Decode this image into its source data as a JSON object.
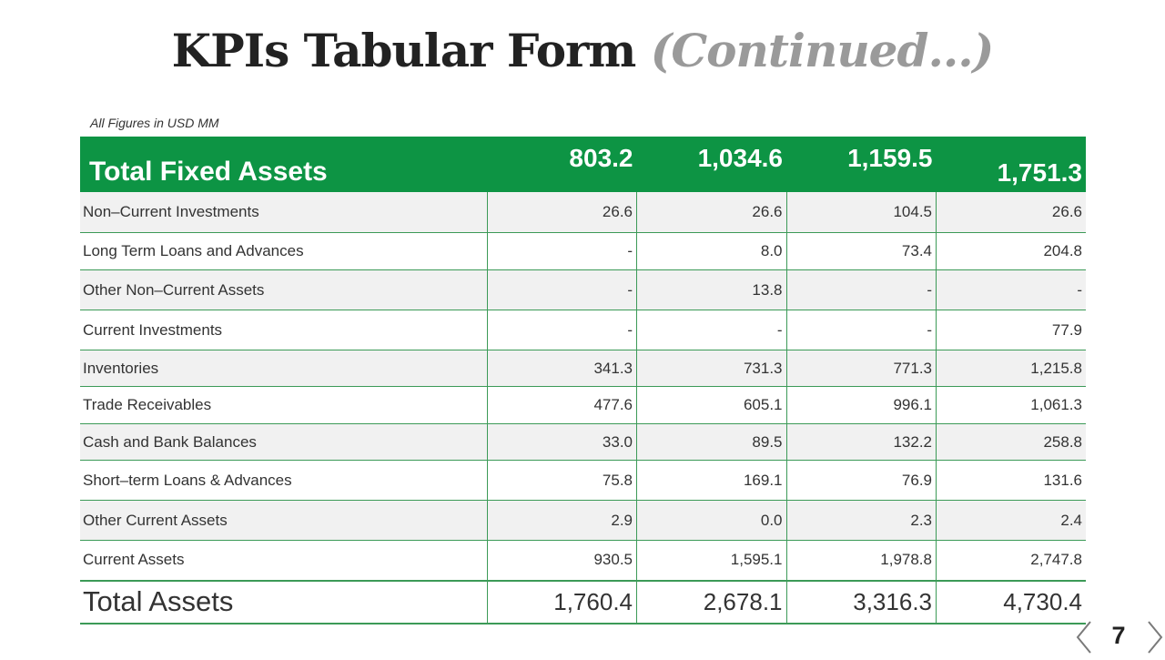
{
  "title": {
    "main": "KPIs Tabular Form",
    "continued": "(Continued...)"
  },
  "units_note": "All Figures in USD MM",
  "table": {
    "header": {
      "label": "Total Fixed Assets",
      "values": [
        "803.2",
        "1,034.6",
        "1,159.5",
        "1,751.3"
      ]
    },
    "rows": [
      {
        "label": "Non–Current Investments",
        "values": [
          "26.6",
          "26.6",
          "104.5",
          "26.6"
        ]
      },
      {
        "label": "Long Term Loans and Advances",
        "values": [
          "-",
          "8.0",
          "73.4",
          "204.8"
        ]
      },
      {
        "label": "Other Non–Current Assets",
        "values": [
          "-",
          "13.8",
          "-",
          "-"
        ]
      },
      {
        "label": "Current Investments",
        "values": [
          "-",
          "-",
          "-",
          "77.9"
        ]
      },
      {
        "label": "Inventories",
        "values": [
          "341.3",
          "731.3",
          "771.3",
          "1,215.8"
        ]
      },
      {
        "label": "Trade Receivables",
        "values": [
          "477.6",
          "605.1",
          "996.1",
          "1,061.3"
        ]
      },
      {
        "label": "Cash and Bank Balances",
        "values": [
          "33.0",
          "89.5",
          "132.2",
          "258.8"
        ]
      },
      {
        "label": "Short–term Loans & Advances",
        "values": [
          "75.8",
          "169.1",
          "76.9",
          "131.6"
        ]
      },
      {
        "label": "Other Current Assets",
        "values": [
          "2.9",
          "0.0",
          "2.3",
          "2.4"
        ]
      },
      {
        "label": "Current Assets",
        "values": [
          "930.5",
          "1,595.1",
          "1,978.8",
          "2,747.8"
        ]
      }
    ],
    "total": {
      "label": "Total Assets",
      "values": [
        "1,760.4",
        "2,678.1",
        "3,316.3",
        "4,730.4"
      ]
    }
  },
  "navigation": {
    "prev_icon": "chevron-left-icon",
    "next_icon": "chevron-right-icon",
    "page_number": "7"
  }
}
